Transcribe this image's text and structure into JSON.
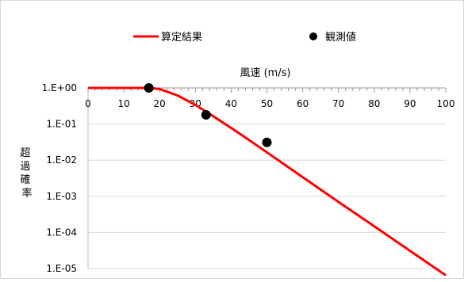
{
  "chart_data": {
    "type": "line",
    "xlabel": "風速 (m/s)",
    "ylabel": "超過確率",
    "x_axis_position": "top",
    "y_scale": "log",
    "xlim": [
      0,
      100
    ],
    "ylim": [
      1e-05,
      1
    ],
    "x_ticks": [
      "0",
      "10",
      "20",
      "30",
      "40",
      "50",
      "60",
      "70",
      "80",
      "90",
      "100"
    ],
    "y_ticks": [
      "1.E+00",
      "1.E-01",
      "1.E-02",
      "1.E-03",
      "1.E-04",
      "1.E-05"
    ],
    "legend_position": "top",
    "grid": {
      "y_major": true,
      "x_major": false
    },
    "series": [
      {
        "name": "算定結果",
        "kind": "line",
        "color": "#ff0000",
        "x": [
          0,
          10,
          15,
          18,
          20,
          25,
          30,
          35,
          40,
          45,
          50,
          60,
          70,
          80,
          90,
          100
        ],
        "y": [
          1.0,
          1.0,
          1.0,
          0.98,
          0.93,
          0.62,
          0.34,
          0.165,
          0.078,
          0.036,
          0.0165,
          0.0034,
          0.0007,
          0.000148,
          3.1e-05,
          6.5e-06
        ]
      },
      {
        "name": "観測値",
        "kind": "scatter",
        "color": "#000000",
        "x": [
          17,
          33,
          50
        ],
        "y": [
          1.0,
          0.18,
          0.031
        ]
      }
    ]
  }
}
